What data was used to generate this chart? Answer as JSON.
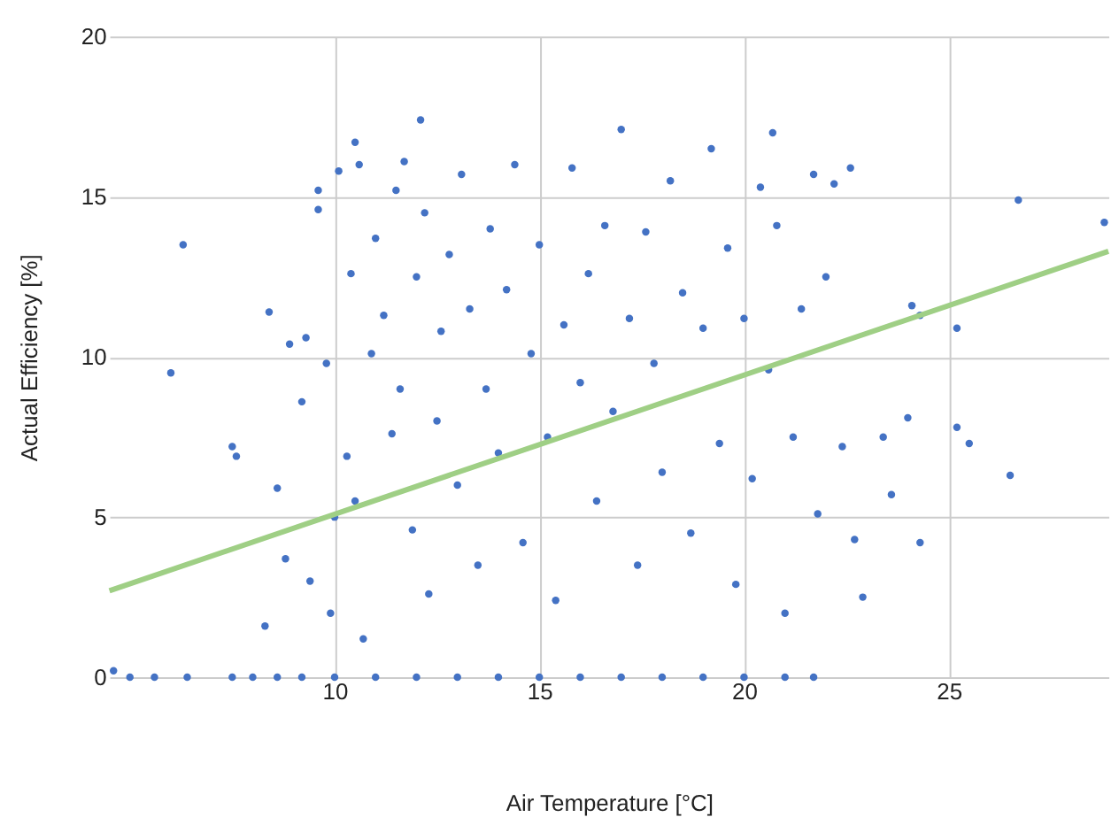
{
  "chart_data": {
    "type": "scatter",
    "xlabel": "Air Temperature [°C]",
    "ylabel": "Actual Efficiency [%]",
    "xlim": [
      4.5,
      28.9
    ],
    "ylim": [
      0,
      20
    ],
    "xticks": [
      10,
      15,
      20,
      25
    ],
    "yticks": [
      0,
      5,
      10,
      15,
      20
    ],
    "grid": true,
    "series": [
      {
        "color": "#4472c4",
        "marker": "circle",
        "x": [
          6.3,
          6.0,
          7.5,
          7.6,
          8.4,
          8.6,
          8.3,
          8.9,
          8.8,
          9.2,
          9.3,
          9.4,
          9.6,
          9.6,
          9.8,
          9.9,
          10.0,
          10.1,
          10.4,
          10.5,
          10.6,
          10.3,
          10.5,
          10.7,
          10.9,
          11.0,
          11.2,
          11.4,
          11.5,
          11.6,
          11.7,
          11.9,
          12.0,
          12.1,
          12.2,
          12.3,
          12.5,
          12.6,
          12.8,
          13.0,
          13.1,
          13.3,
          13.5,
          13.7,
          13.8,
          14.0,
          14.2,
          14.4,
          14.6,
          14.8,
          15.0,
          15.2,
          15.4,
          15.6,
          15.8,
          16.0,
          16.2,
          16.4,
          16.6,
          16.8,
          17.0,
          17.2,
          17.4,
          17.6,
          17.8,
          18.0,
          18.2,
          18.5,
          18.7,
          19.0,
          19.2,
          19.4,
          19.6,
          19.8,
          20.0,
          20.2,
          20.4,
          20.6,
          20.7,
          20.8,
          21.0,
          21.2,
          21.4,
          21.7,
          21.8,
          22.0,
          22.2,
          22.4,
          22.6,
          22.7,
          22.9,
          23.4,
          23.6,
          24.0,
          24.1,
          24.3,
          24.3,
          25.2,
          25.2,
          25.5,
          26.5,
          26.7,
          28.8,
          4.6,
          5.0,
          5.6,
          6.4,
          7.5,
          8.0,
          8.6,
          9.2,
          10.0,
          11.0,
          12.0,
          13.0,
          14.0,
          15.0,
          16.0,
          17.0,
          18.0,
          19.0,
          20.0,
          21.0,
          21.7
        ],
        "values": [
          13.5,
          9.5,
          7.2,
          6.9,
          11.4,
          5.9,
          1.6,
          10.4,
          3.7,
          8.6,
          10.6,
          3.0,
          15.2,
          14.6,
          9.8,
          2.0,
          5.0,
          15.8,
          12.6,
          16.7,
          16.0,
          6.9,
          5.5,
          1.2,
          10.1,
          13.7,
          11.3,
          7.6,
          15.2,
          9.0,
          16.1,
          4.6,
          12.5,
          17.4,
          14.5,
          2.6,
          8.0,
          10.8,
          13.2,
          6.0,
          15.7,
          11.5,
          3.5,
          9.0,
          14.0,
          7.0,
          12.1,
          16.0,
          4.2,
          10.1,
          13.5,
          7.5,
          2.4,
          11.0,
          15.9,
          9.2,
          12.6,
          5.5,
          14.1,
          8.3,
          17.1,
          11.2,
          3.5,
          13.9,
          9.8,
          6.4,
          15.5,
          12.0,
          4.5,
          10.9,
          16.5,
          7.3,
          13.4,
          2.9,
          11.2,
          6.2,
          15.3,
          9.6,
          17.0,
          14.1,
          2.0,
          7.5,
          11.5,
          15.7,
          5.1,
          12.5,
          15.4,
          7.2,
          15.9,
          4.3,
          2.5,
          7.5,
          5.7,
          8.1,
          11.6,
          11.3,
          4.2,
          10.9,
          7.8,
          7.3,
          6.3,
          14.9,
          14.2,
          0.2,
          0,
          0,
          0,
          0,
          0,
          0,
          0,
          0,
          0,
          0,
          0,
          0,
          0,
          0,
          0,
          0,
          0,
          0,
          0,
          0
        ]
      },
      {
        "type": "line",
        "color": "#9fcf85",
        "x": [
          4.5,
          28.9
        ],
        "values": [
          2.7,
          13.3
        ]
      }
    ]
  }
}
